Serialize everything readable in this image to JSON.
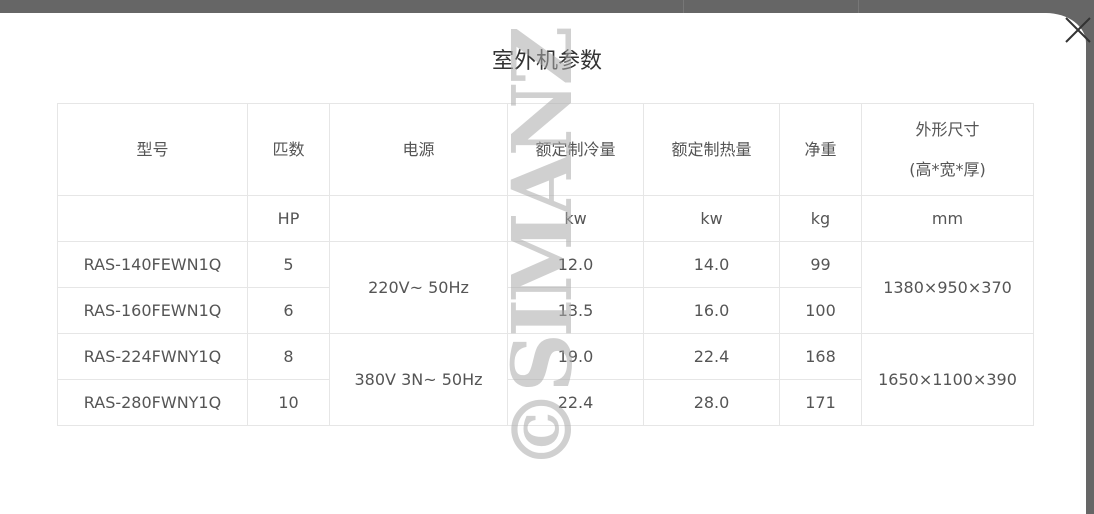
{
  "dialog": {
    "title": "室外机参数",
    "close_icon": "close-x-icon"
  },
  "table": {
    "headers": [
      "型号",
      "匹数",
      "电源",
      "额定制冷量",
      "额定制热量",
      "净重",
      "外形尺寸",
      "(高*宽*厚)"
    ],
    "units": [
      "",
      "HP",
      "",
      "kw",
      "kw",
      "kg",
      "mm"
    ],
    "rows": [
      {
        "model": "RAS-140FEWN1Q",
        "hp": "5",
        "cooling": "12.0",
        "heating": "14.0",
        "weight": "99"
      },
      {
        "model": "RAS-160FEWN1Q",
        "hp": "6",
        "cooling": "13.5",
        "heating": "16.0",
        "weight": "100"
      },
      {
        "model": "RAS-224FWNY1Q",
        "hp": "8",
        "cooling": "19.0",
        "heating": "22.4",
        "weight": "168"
      },
      {
        "model": "RAS-280FWNY1Q",
        "hp": "10",
        "cooling": "22.4",
        "heating": "28.0",
        "weight": "171"
      }
    ],
    "power_groups": [
      "220V~ 50Hz",
      "380V 3N~ 50Hz"
    ],
    "size_groups": [
      "1380×950×370",
      "1650×1100×390"
    ]
  },
  "watermark": "©SIMANZ"
}
